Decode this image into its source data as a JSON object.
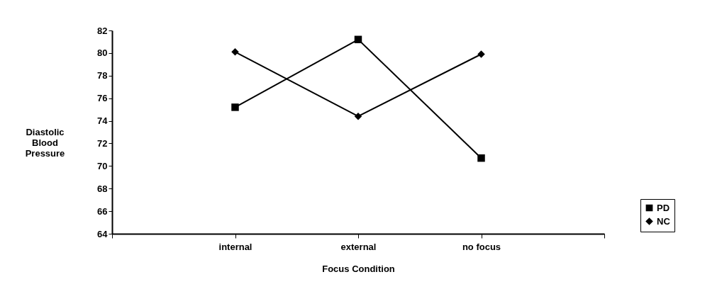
{
  "chart_data": {
    "type": "line",
    "xlabel": "Focus Condition",
    "ylabel": "Diastolic Blood Pressure",
    "categories": [
      null,
      "internal",
      "external",
      "no focus",
      null
    ],
    "series": [
      {
        "name": "PD",
        "color": "#000000",
        "marker": "square",
        "values": [
          null,
          75.2,
          81.2,
          70.7,
          null
        ]
      },
      {
        "name": "NC",
        "color": "#000000",
        "marker": "diamond",
        "values": [
          null,
          80.1,
          74.4,
          79.9,
          null
        ]
      }
    ],
    "ylim": [
      64,
      82
    ],
    "yticks": [
      64,
      66,
      68,
      70,
      72,
      74,
      76,
      78,
      80,
      82
    ],
    "grid": false,
    "legend": "right"
  }
}
